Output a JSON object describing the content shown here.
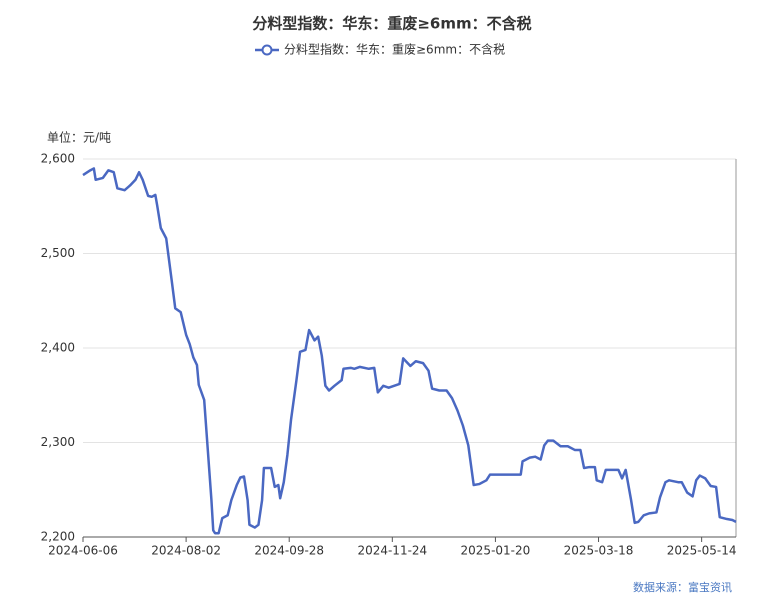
{
  "chart_data": {
    "type": "line",
    "title": "分料型指数：华东：重废≥6mm：不含税",
    "unit_label": "单位：元/吨",
    "source": "数据来源：富宝资讯",
    "legend": "top",
    "grid": true,
    "x": [
      "2024-06-06",
      "2024-06-10",
      "2024-06-12",
      "2024-06-13",
      "2024-06-17",
      "2024-06-20",
      "2024-06-23",
      "2024-06-25",
      "2024-06-29",
      "2024-07-02",
      "2024-07-05",
      "2024-07-07",
      "2024-07-09",
      "2024-07-12",
      "2024-07-14",
      "2024-07-16",
      "2024-07-17",
      "2024-07-19",
      "2024-07-22",
      "2024-07-25",
      "2024-07-27",
      "2024-07-30",
      "2024-08-02",
      "2024-08-04",
      "2024-08-06",
      "2024-08-08",
      "2024-08-09",
      "2024-08-12",
      "2024-08-14",
      "2024-08-16",
      "2024-08-17",
      "2024-08-18",
      "2024-08-20",
      "2024-08-22",
      "2024-08-25",
      "2024-08-27",
      "2024-08-30",
      "2024-09-01",
      "2024-09-03",
      "2024-09-05",
      "2024-09-06",
      "2024-09-09",
      "2024-09-11",
      "2024-09-13",
      "2024-09-14",
      "2024-09-18",
      "2024-09-20",
      "2024-09-22",
      "2024-09-23",
      "2024-09-25",
      "2024-09-27",
      "2024-09-29",
      "2024-10-02",
      "2024-10-04",
      "2024-10-07",
      "2024-10-09",
      "2024-10-12",
      "2024-10-14",
      "2024-10-16",
      "2024-10-18",
      "2024-10-20",
      "2024-10-23",
      "2024-10-27",
      "2024-10-28",
      "2024-11-01",
      "2024-11-03",
      "2024-11-06",
      "2024-11-11",
      "2024-11-14",
      "2024-11-16",
      "2024-11-19",
      "2024-11-22",
      "2024-11-25",
      "2024-11-28",
      "2024-11-30",
      "2024-12-04",
      "2024-12-07",
      "2024-12-11",
      "2024-12-14",
      "2024-12-16",
      "2024-12-20",
      "2024-12-24",
      "2024-12-27",
      "2024-12-30",
      "2025-01-02",
      "2025-01-05",
      "2025-01-08",
      "2025-01-11",
      "2025-01-15",
      "2025-01-17",
      "2025-01-21",
      "2025-01-27",
      "2025-01-31",
      "2025-02-03",
      "2025-02-04",
      "2025-02-08",
      "2025-02-11",
      "2025-02-14",
      "2025-02-16",
      "2025-02-18",
      "2025-02-21",
      "2025-02-25",
      "2025-03-01",
      "2025-03-05",
      "2025-03-08",
      "2025-03-10",
      "2025-03-13",
      "2025-03-16",
      "2025-03-17",
      "2025-03-20",
      "2025-03-22",
      "2025-03-26",
      "2025-03-29",
      "2025-03-31",
      "2025-04-02",
      "2025-04-05",
      "2025-04-07",
      "2025-04-09",
      "2025-04-12",
      "2025-04-15",
      "2025-04-19",
      "2025-04-21",
      "2025-04-24",
      "2025-04-26",
      "2025-05-01",
      "2025-05-03",
      "2025-05-06",
      "2025-05-09",
      "2025-05-11",
      "2025-05-13",
      "2025-05-16",
      "2025-05-19",
      "2025-05-22",
      "2025-05-24",
      "2025-05-28",
      "2025-05-31",
      "2025-06-02"
    ],
    "series": [
      {
        "name": "分料型指数：华东：重废≥6mm：不含税",
        "color": "#4a68c2",
        "values": [
          2583,
          2588,
          2590,
          2578,
          2580,
          2588,
          2586,
          2569,
          2567,
          2572,
          2578,
          2586,
          2578,
          2561,
          2560,
          2562,
          2551,
          2527,
          2516,
          2472,
          2442,
          2438,
          2414,
          2404,
          2390,
          2382,
          2361,
          2345,
          2292,
          2239,
          2207,
          2204,
          2204,
          2220,
          2223,
          2239,
          2255,
          2263,
          2264,
          2239,
          2213,
          2210,
          2213,
          2239,
          2273,
          2273,
          2253,
          2255,
          2241,
          2258,
          2287,
          2324,
          2366,
          2396,
          2398,
          2419,
          2408,
          2412,
          2392,
          2360,
          2355,
          2360,
          2366,
          2378,
          2379,
          2378,
          2380,
          2378,
          2379,
          2353,
          2360,
          2358,
          2360,
          2362,
          2389,
          2381,
          2386,
          2384,
          2376,
          2357,
          2355,
          2355,
          2347,
          2334,
          2318,
          2297,
          2255,
          2256,
          2260,
          2266,
          2266,
          2266,
          2266,
          2266,
          2280,
          2284,
          2285,
          2282,
          2297,
          2302,
          2302,
          2296,
          2296,
          2292,
          2292,
          2273,
          2274,
          2274,
          2260,
          2258,
          2271,
          2271,
          2271,
          2262,
          2271,
          2239,
          2215,
          2216,
          2223,
          2225,
          2226,
          2242,
          2258,
          2260,
          2258,
          2258,
          2247,
          2243,
          2260,
          2265,
          2262,
          2254,
          2253,
          2221,
          2219,
          2218,
          2216
        ]
      }
    ],
    "xlim": [
      "2024-06-06",
      "2025-06-02"
    ],
    "xticks": [
      "2024-06-06",
      "2024-08-02",
      "2024-09-28",
      "2024-11-24",
      "2025-01-20",
      "2025-03-18",
      "2025-05-14"
    ],
    "ylim": [
      2200,
      2600
    ],
    "yticks": [
      {
        "value": 2200,
        "label": "2,200"
      },
      {
        "value": 2300,
        "label": "2,300"
      },
      {
        "value": 2400,
        "label": "2,400"
      },
      {
        "value": 2500,
        "label": "2,500"
      },
      {
        "value": 2600,
        "label": "2,600"
      }
    ]
  }
}
